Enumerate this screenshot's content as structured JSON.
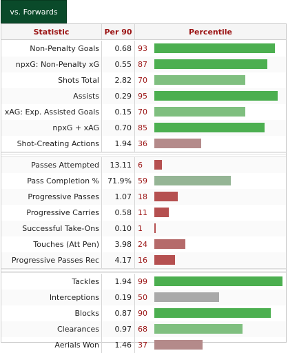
{
  "tab": {
    "label": "vs. Forwards"
  },
  "headers": {
    "stat": "Statistic",
    "per90": "Per 90",
    "percentile": "Percentile"
  },
  "colors": {
    "high": "#4caf50",
    "mid_high": "#7fbf7f",
    "mid": "#a9a9a9",
    "low": "#b48a8a",
    "very_low": "#b55050",
    "text_accent": "#9a1212",
    "tab_bg": "#0a4a2a"
  },
  "groups": [
    {
      "rows": [
        {
          "stat": "Non-Penalty Goals",
          "per90": "0.68",
          "pct": 93,
          "color": "#4caf50"
        },
        {
          "stat": "npxG: Non-Penalty xG",
          "per90": "0.55",
          "pct": 87,
          "color": "#4caf50"
        },
        {
          "stat": "Shots Total",
          "per90": "2.82",
          "pct": 70,
          "color": "#7fbf7f"
        },
        {
          "stat": "Assists",
          "per90": "0.29",
          "pct": 95,
          "color": "#4caf50"
        },
        {
          "stat": "xAG: Exp. Assisted Goals",
          "per90": "0.15",
          "pct": 70,
          "color": "#7fbf7f"
        },
        {
          "stat": "npxG + xAG",
          "per90": "0.70",
          "pct": 85,
          "color": "#4caf50"
        },
        {
          "stat": "Shot-Creating Actions",
          "per90": "1.94",
          "pct": 36,
          "color": "#b48a8a"
        }
      ]
    },
    {
      "rows": [
        {
          "stat": "Passes Attempted",
          "per90": "13.11",
          "pct": 6,
          "color": "#b55050"
        },
        {
          "stat": "Pass Completion %",
          "per90": "71.9%",
          "pct": 59,
          "color": "#95b595"
        },
        {
          "stat": "Progressive Passes",
          "per90": "1.07",
          "pct": 18,
          "color": "#b55050"
        },
        {
          "stat": "Progressive Carries",
          "per90": "0.58",
          "pct": 11,
          "color": "#b55050"
        },
        {
          "stat": "Successful Take-Ons",
          "per90": "0.10",
          "pct": 1,
          "color": "#b55050"
        },
        {
          "stat": "Touches (Att Pen)",
          "per90": "3.98",
          "pct": 24,
          "color": "#b56a6a"
        },
        {
          "stat": "Progressive Passes Rec",
          "per90": "4.17",
          "pct": 16,
          "color": "#b55050"
        }
      ]
    },
    {
      "rows": [
        {
          "stat": "Tackles",
          "per90": "1.94",
          "pct": 99,
          "color": "#4caf50"
        },
        {
          "stat": "Interceptions",
          "per90": "0.19",
          "pct": 50,
          "color": "#a9a9a9"
        },
        {
          "stat": "Blocks",
          "per90": "0.87",
          "pct": 90,
          "color": "#4caf50"
        },
        {
          "stat": "Clearances",
          "per90": "0.97",
          "pct": 68,
          "color": "#7fbf7f"
        },
        {
          "stat": "Aerials Won",
          "per90": "1.46",
          "pct": 37,
          "color": "#b48a8a"
        }
      ]
    }
  ]
}
